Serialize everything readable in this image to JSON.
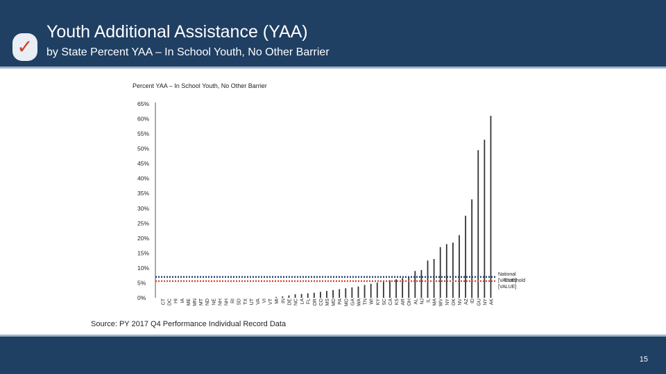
{
  "slide": {
    "title": "Youth Additional Assistance (YAA)",
    "subtitle": "by State Percent YAA – In School Youth, No Other Barrier",
    "check_icon": "checkmark-icon",
    "source": "Source: PY 2017 Q4 Performance Individual Record Data",
    "page_number": "15",
    "colors": {
      "header": "#1f3f63",
      "accent": "#d23a2a"
    }
  },
  "chart_data": {
    "type": "bar",
    "title": "Percent YAA – In School Youth, No Other Barrier",
    "xlabel": "",
    "ylabel": "",
    "ylim": [
      0,
      65
    ],
    "ytick_labels": [
      "0%",
      "5%",
      "10%",
      "15%",
      "20%",
      "25%",
      "30%",
      "35%",
      "40%",
      "45%",
      "50%",
      "55%",
      "60%",
      "65%"
    ],
    "grid": false,
    "categories": [
      "CT",
      "DC",
      "HI",
      "IA",
      "ME",
      "MN",
      "MT",
      "ND",
      "NE",
      "NH",
      "NH",
      "RI",
      "SD",
      "TX",
      "UT",
      "VA",
      "VI",
      "VT",
      "MI",
      "IN",
      "DE",
      "NC",
      "LA",
      "FL",
      "OR",
      "CO",
      "MS",
      "MD",
      "PA",
      "MO",
      "GA",
      "WA",
      "TN",
      "WI",
      "KY",
      "SC",
      "CA",
      "KS",
      "AR",
      "OH",
      "AL",
      "NJ",
      "IL",
      "MA",
      "WV",
      "NY",
      "OK",
      "NV",
      "AZ",
      "ID",
      "GU",
      "NY",
      "AK"
    ],
    "values": [
      0,
      0,
      0,
      0,
      0,
      0,
      0,
      0,
      0,
      0,
      0,
      0,
      0,
      0,
      0,
      0,
      0,
      0,
      0.3,
      0.5,
      0.8,
      1.2,
      1.3,
      1.5,
      1.7,
      2.0,
      2.3,
      2.6,
      2.9,
      3.2,
      3.5,
      3.8,
      4.3,
      4.7,
      5.1,
      5.5,
      5.9,
      6.2,
      6.6,
      7.0,
      9.0,
      9.3,
      12.5,
      13.0,
      17.0,
      18.0,
      18.5,
      21.0,
      27.5,
      33.0,
      49.5,
      53.0,
      61.0
    ],
    "reference_lines": [
      {
        "name": "National",
        "value": 7.0,
        "label": "National [VALUE]",
        "color": "#1f3f73"
      },
      {
        "name": "Threshold",
        "value": 5.6,
        "label": "Threshold [VALUE]",
        "color": "#d24b3a"
      }
    ],
    "bar_color": "#333333"
  }
}
